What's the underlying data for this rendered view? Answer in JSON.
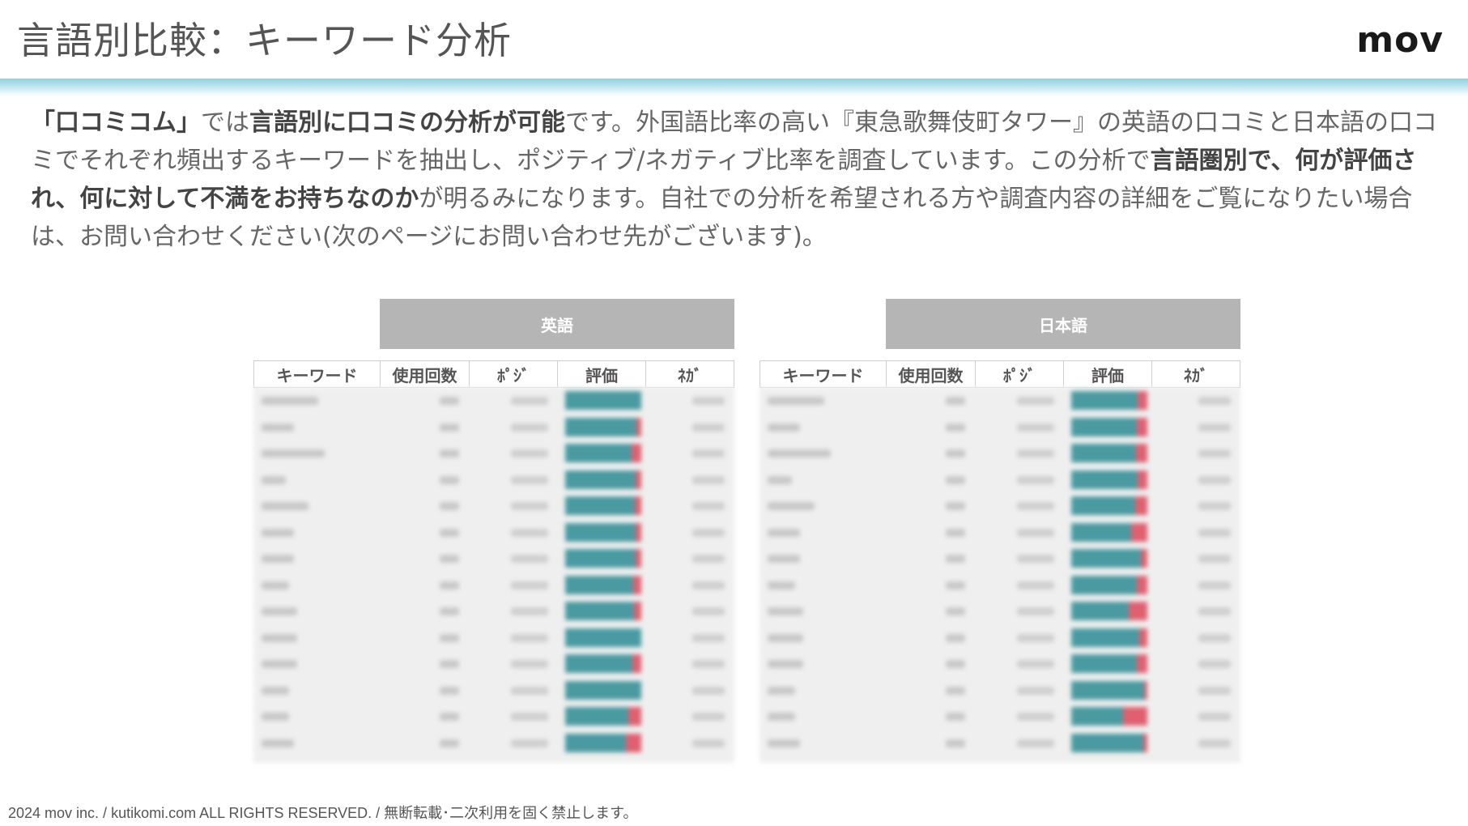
{
  "header": {
    "title": "言語別比較：キーワード分析",
    "logo": "mov"
  },
  "intro": {
    "segments": [
      {
        "text": "「口コミコム」",
        "bold": true
      },
      {
        "text": "では",
        "bold": false
      },
      {
        "text": "言語別に口コミの分析が可能",
        "bold": true
      },
      {
        "text": "です。外国語比率の高い『東急歌舞伎町タワー』の英語の口コミと日本語の口コミでそれぞれ頻出するキーワードを抽出し、ポジティブ/ネガティブ比率を調査しています。この分析で",
        "bold": false
      },
      {
        "text": "言語圏別で、何が評価され、何に対して不満をお持ちなのか",
        "bold": true
      },
      {
        "text": "が明るみになります。自社での分析を希望される方や調査内容の詳細をご覧になりたい場合は、お問い合わせください(次のページにお問い合わせ先がございます)。",
        "bold": false
      }
    ]
  },
  "tables": {
    "english": {
      "title": "英語",
      "columns": [
        "キーワード",
        "使用回数",
        "ﾎﾟｼﾞ",
        "評価",
        "ﾈｶﾞ"
      ],
      "rows": [
        {
          "pos": 1.0,
          "neg": 0.0
        },
        {
          "pos": 0.94,
          "neg": 0.06
        },
        {
          "pos": 0.87,
          "neg": 0.13
        },
        {
          "pos": 0.93,
          "neg": 0.07
        },
        {
          "pos": 0.92,
          "neg": 0.08
        },
        {
          "pos": 0.93,
          "neg": 0.07
        },
        {
          "pos": 0.93,
          "neg": 0.07
        },
        {
          "pos": 0.89,
          "neg": 0.11
        },
        {
          "pos": 0.9,
          "neg": 0.1
        },
        {
          "pos": 1.0,
          "neg": 0.0
        },
        {
          "pos": 0.88,
          "neg": 0.12
        },
        {
          "pos": 1.0,
          "neg": 0.0
        },
        {
          "pos": 0.83,
          "neg": 0.17
        },
        {
          "pos": 0.8,
          "neg": 0.2
        }
      ]
    },
    "japanese": {
      "title": "日本語",
      "columns": [
        "キーワード",
        "使用回数",
        "ﾎﾟｼﾞ",
        "評価",
        "ﾈｶﾞ"
      ],
      "rows": [
        {
          "pos": 0.87,
          "neg": 0.13
        },
        {
          "pos": 0.86,
          "neg": 0.14
        },
        {
          "pos": 0.85,
          "neg": 0.15
        },
        {
          "pos": 0.87,
          "neg": 0.13
        },
        {
          "pos": 0.84,
          "neg": 0.16
        },
        {
          "pos": 0.79,
          "neg": 0.21
        },
        {
          "pos": 0.91,
          "neg": 0.09
        },
        {
          "pos": 0.86,
          "neg": 0.14
        },
        {
          "pos": 0.75,
          "neg": 0.25
        },
        {
          "pos": 0.89,
          "neg": 0.11
        },
        {
          "pos": 0.86,
          "neg": 0.14
        },
        {
          "pos": 0.96,
          "neg": 0.04
        },
        {
          "pos": 0.68,
          "neg": 0.32
        },
        {
          "pos": 0.95,
          "neg": 0.05
        }
      ]
    }
  },
  "colors": {
    "positive": "#4a9aa2",
    "negative": "#e06070",
    "banner": "#b5b5b5",
    "accent_bar": "#8fd0e0"
  },
  "footer": {
    "copyright": "2024 mov inc. / kutikomi.com ALL RIGHTS RESERVED. / 無断転載･二次利用を固く禁止します。"
  }
}
